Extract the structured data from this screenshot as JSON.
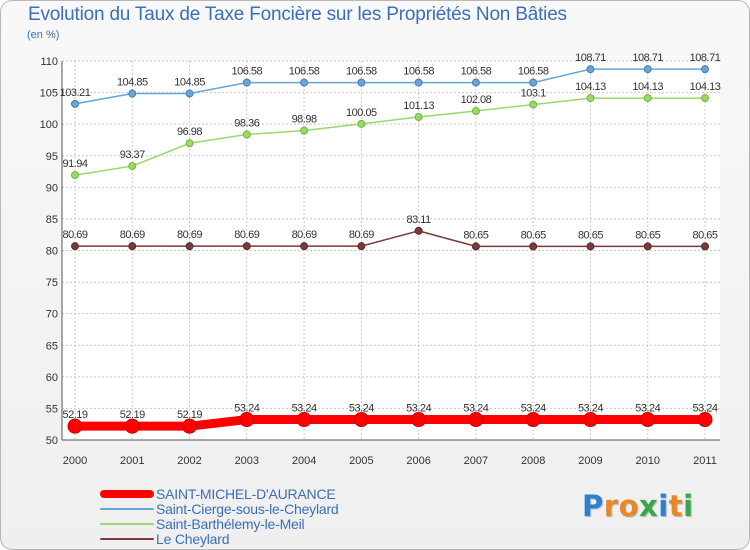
{
  "chart_data": {
    "type": "line",
    "title": "Evolution du Taux de Taxe Foncière sur les Propriétés Non Bâties",
    "subtitle": "(en %)",
    "categories": [
      "2000",
      "2001",
      "2002",
      "2003",
      "2004",
      "2005",
      "2006",
      "2007",
      "2008",
      "2009",
      "2010",
      "2011"
    ],
    "ylim": [
      50,
      110
    ],
    "yticks": [
      "50",
      "55",
      "60",
      "65",
      "70",
      "75",
      "80",
      "85",
      "90",
      "95",
      "100",
      "105",
      "110"
    ],
    "grid": true,
    "series": [
      {
        "name": "SAINT-MICHEL-D'AURANCE",
        "color": "#ff0000",
        "values": [
          52.19,
          52.19,
          52.19,
          53.24,
          53.24,
          53.24,
          53.24,
          53.24,
          53.24,
          53.24,
          53.24,
          53.24
        ],
        "labels": [
          "52.19",
          "52.19",
          "52.19",
          "53.24",
          "53.24",
          "53.24",
          "53.24",
          "53.24",
          "53.24",
          "53.24",
          "53.24",
          "53.24"
        ]
      },
      {
        "name": "Saint-Cierge-sous-le-Cheylard",
        "color": "#6aa5d8",
        "values": [
          103.21,
          104.85,
          104.85,
          106.58,
          106.58,
          106.58,
          106.58,
          106.58,
          106.58,
          108.71,
          108.71,
          108.71
        ],
        "labels": [
          "103.21",
          "104.85",
          "104.85",
          "106.58",
          "106.58",
          "106.58",
          "106.58",
          "106.58",
          "106.58",
          "108.71",
          "108.71",
          "108.71"
        ]
      },
      {
        "name": "Saint-Barthélemy-le-Meil",
        "color": "#9bd86a",
        "values": [
          91.94,
          93.37,
          96.98,
          98.36,
          98.98,
          100.05,
          101.13,
          102.08,
          103.1,
          104.13,
          104.13,
          104.13
        ],
        "labels": [
          "91.94",
          "93.37",
          "96.98",
          "98.36",
          "98.98",
          "100.05",
          "101.13",
          "102.08",
          "103.1",
          "104.13",
          "104.13",
          "104.13"
        ]
      },
      {
        "name": "Le Cheylard",
        "color": "#7a3a3a",
        "values": [
          80.69,
          80.69,
          80.69,
          80.69,
          80.69,
          80.69,
          83.11,
          80.65,
          80.65,
          80.65,
          80.65,
          80.65
        ],
        "labels": [
          "80.69",
          "80.69",
          "80.69",
          "80.69",
          "80.69",
          "80.69",
          "83.11",
          "80.65",
          "80.65",
          "80.65",
          "80.65",
          "80.65"
        ]
      }
    ]
  },
  "logo": {
    "text": "Proxiti",
    "letters": [
      "P",
      "r",
      "o",
      "x",
      "i",
      "t",
      "i"
    ],
    "colors": [
      "#2d7fd0",
      "#e8872a",
      "#e8872a",
      "#3aa54b",
      "#2d7fd0",
      "#e8872a",
      "#3aa54b"
    ]
  }
}
